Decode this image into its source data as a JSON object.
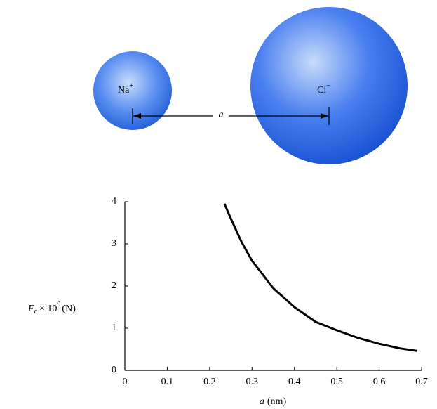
{
  "diagram": {
    "ions": [
      {
        "symbol": "Na",
        "charge": "+"
      },
      {
        "symbol": "Cl",
        "charge": "−"
      }
    ],
    "distance_label": "a"
  },
  "chart_data": {
    "type": "line",
    "x": [
      0.235,
      0.25,
      0.275,
      0.3,
      0.35,
      0.4,
      0.45,
      0.5,
      0.55,
      0.6,
      0.65,
      0.69
    ],
    "values": [
      3.95,
      3.6,
      3.05,
      2.6,
      1.95,
      1.5,
      1.15,
      0.95,
      0.77,
      0.63,
      0.52,
      0.46
    ],
    "color": "#000000",
    "xlim": [
      0,
      0.7
    ],
    "xticks": [
      0,
      0.1,
      0.2,
      0.3,
      0.4,
      0.5,
      0.6,
      0.7
    ],
    "ylim": [
      0,
      4
    ],
    "yticks": [
      0,
      1,
      2,
      3,
      4
    ],
    "x_label": {
      "symbol": "a",
      "unit": "(nm)"
    },
    "y_label": {
      "symbol": "F",
      "subscript": "c",
      "times": "× 10",
      "exponent": "9",
      "unit": "(N)"
    }
  }
}
